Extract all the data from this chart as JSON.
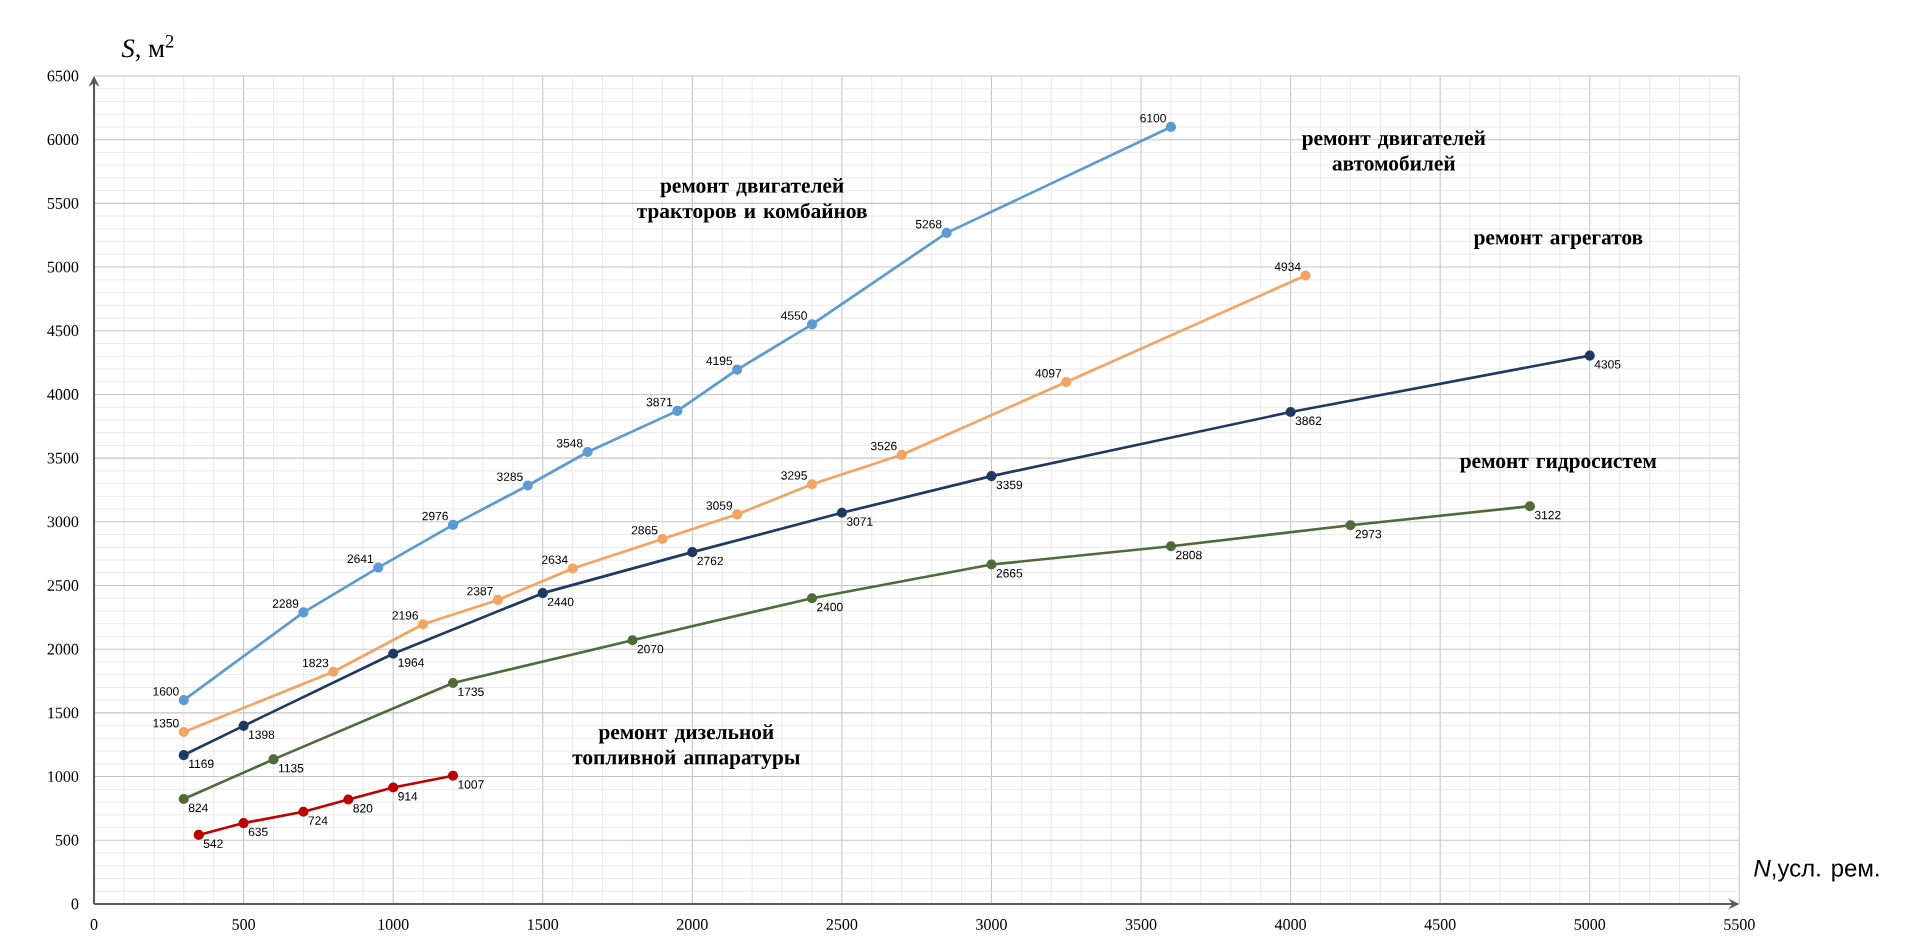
{
  "chart_data": {
    "type": "line",
    "xlabel": "*N*,усл. рем.",
    "ylabel": "*S*, м$^{2}$",
    "xlim": [
      0,
      5500
    ],
    "ylim": [
      0,
      6500
    ],
    "xticks": [
      0,
      500,
      1000,
      1500,
      2000,
      2500,
      3000,
      3500,
      4000,
      4500,
      5000,
      5500
    ],
    "yticks": [
      0,
      500,
      1000,
      1500,
      2000,
      2500,
      3000,
      3500,
      4000,
      4500,
      5000,
      5500,
      6000,
      6500
    ],
    "grid": true,
    "marker": "circle",
    "data_labels": true,
    "series": [
      {
        "color": "#5b9bd5",
        "x": [
          300,
          700,
          950,
          1200,
          1450,
          1650,
          1950,
          2150,
          2400,
          2850,
          3600
        ],
        "values": [
          1600,
          2289,
          2641,
          2976,
          3285,
          3548,
          3871,
          4195,
          4550,
          5268,
          6100
        ]
      },
      {
        "color": "#f4a460",
        "x": [
          300,
          800,
          1100,
          1350,
          1600,
          1900,
          2150,
          2400,
          2700,
          3250,
          4050
        ],
        "values": [
          1350,
          1823,
          2196,
          2387,
          2634,
          2865,
          3059,
          3295,
          3526,
          4097,
          4934
        ]
      },
      {
        "color": "#1f3864",
        "x": [
          300,
          500,
          1000,
          1500,
          2000,
          2500,
          3000,
          4000,
          5000
        ],
        "values": [
          1169,
          1398,
          1964,
          2440,
          2762,
          3071,
          3359,
          3862,
          4305
        ]
      },
      {
        "color": "#4e6b3a",
        "x": [
          300,
          600,
          1200,
          1800,
          2400,
          3000,
          3600,
          4200,
          4800
        ],
        "values": [
          824,
          1135,
          1735,
          2070,
          2400,
          2665,
          2808,
          2973,
          3122
        ]
      },
      {
        "color": "#c00000",
        "x": [
          350,
          500,
          700,
          850,
          1000,
          1200
        ],
        "values": [
          542,
          635,
          724,
          820,
          914,
          1007
        ]
      }
    ],
    "annotations": [
      "ремонт двигателей тракторов и комбайнов",
      "ремонт двигателей автомобилей",
      "ремонт агрегатов",
      "ремонт гидросистем",
      "ремонт дизельной топливной аппаратуры"
    ]
  }
}
